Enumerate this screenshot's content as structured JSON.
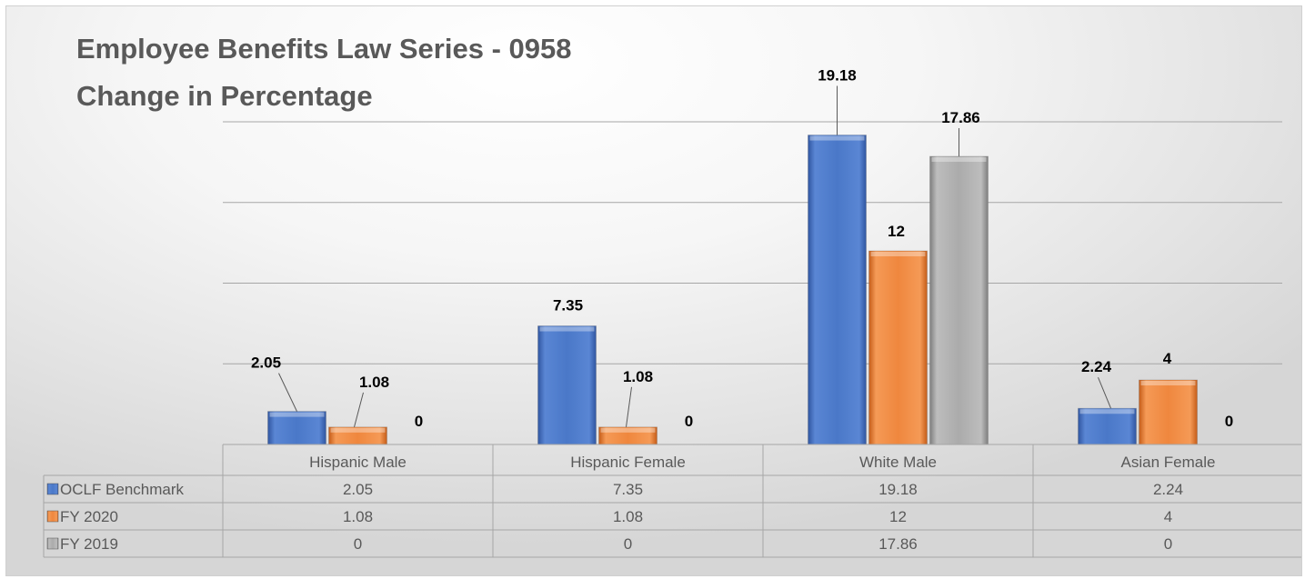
{
  "chart_data": {
    "type": "bar",
    "title": "Employee Benefits Law Series - 0958",
    "subtitle": "Change in Percentage",
    "categories": [
      "Hispanic Male",
      "Hispanic Female",
      "White Male",
      "Asian Female"
    ],
    "series": [
      {
        "name": "OCLF Benchmark",
        "values": [
          2.05,
          7.35,
          19.18,
          2.24
        ],
        "color": "#4472c4"
      },
      {
        "name": "FY 2020",
        "values": [
          1.08,
          1.08,
          12,
          4
        ],
        "color": "#ed7d31"
      },
      {
        "name": "FY 2019",
        "values": [
          0,
          0,
          17.86,
          0
        ],
        "color": "#a5a5a5"
      }
    ],
    "data_labels": [
      [
        "2.05",
        "7.35",
        "19.18",
        "2.24"
      ],
      [
        "1.08",
        "1.08",
        "12",
        "4"
      ],
      [
        "0",
        "0",
        "17.86",
        "0"
      ]
    ],
    "ylim": [
      0,
      20
    ],
    "grid": true,
    "legend": "data-table",
    "table_values": [
      [
        "2.05",
        "7.35",
        "19.18",
        "2.24"
      ],
      [
        "1.08",
        "1.08",
        "12",
        "4"
      ],
      [
        "0",
        "0",
        "17.86",
        "0"
      ]
    ]
  }
}
